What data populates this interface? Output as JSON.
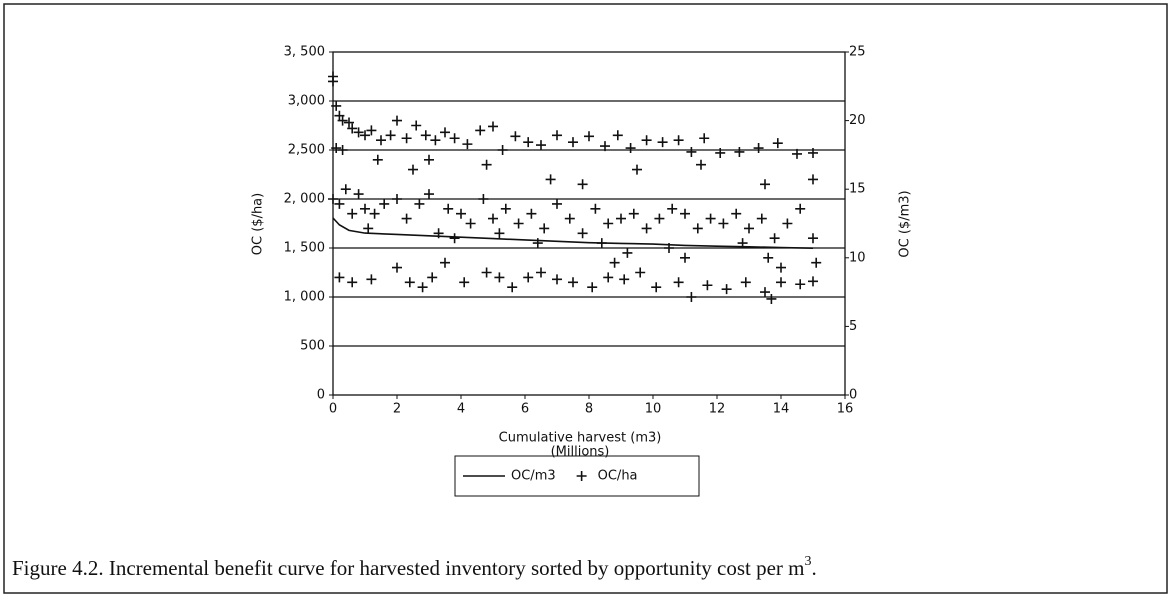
{
  "chart_data": {
    "type": "combo",
    "xlabel": "Cumulative harvest (m3)",
    "xlabel2": "(Millions)",
    "ylabel": "OC ($/ha)",
    "y2label": "OC ($/m3)",
    "caption": [
      "Figure 4.2.  Incremental benefit curve for harvested inventory sorted by opportunity cost per m",
      "3",
      "."
    ],
    "xlim": [
      0,
      16
    ],
    "xticks": [
      0,
      2,
      4,
      6,
      8,
      10,
      12,
      14,
      16
    ],
    "ylim": [
      0,
      3500
    ],
    "yticks": [
      0,
      500,
      {
        "value": 1000,
        "label": "1, 000"
      },
      {
        "value": 1500,
        "label": "1, 500"
      },
      {
        "value": 2000,
        "label": "2, 000"
      },
      {
        "value": 2500,
        "label": "2,500"
      },
      {
        "value": 3000,
        "label": "3,000"
      },
      {
        "value": 3500,
        "label": "3, 500"
      }
    ],
    "y2lim": [
      0,
      25
    ],
    "y2ticks": [
      0,
      5,
      10,
      15,
      20,
      25
    ],
    "grid": true,
    "series": [
      {
        "name": "OC/m3",
        "type": "line",
        "axis": "y2",
        "color": "#111",
        "x": [
          0,
          0.2,
          0.5,
          1,
          2,
          3,
          4,
          5,
          6,
          7,
          8,
          9,
          10,
          11,
          12,
          13,
          14,
          15
        ],
        "values": [
          12.9,
          12.4,
          12.0,
          11.8,
          11.7,
          11.6,
          11.5,
          11.4,
          11.3,
          11.2,
          11.1,
          11.05,
          11.0,
          10.9,
          10.85,
          10.8,
          10.75,
          10.7
        ]
      },
      {
        "name": "OC/ha",
        "type": "scatter",
        "color": "#111",
        "x": [
          0,
          0,
          0.1,
          0.2,
          0.3,
          0.5,
          0.6,
          0.8,
          1,
          1.2,
          1.5,
          1.8,
          2,
          2.3,
          2.6,
          2.9,
          3.2,
          3.5,
          3.8,
          4.2,
          4.6,
          5,
          5.3,
          5.7,
          6.1,
          6.5,
          7,
          7.5,
          8,
          8.5,
          8.9,
          9.3,
          9.8,
          10.3,
          10.8,
          11.2,
          11.6,
          12.1,
          12.7,
          13.3,
          13.9,
          14.5,
          15,
          0.1,
          1.4,
          2.5,
          4.8,
          6.8,
          7.8,
          9.5,
          11.5,
          13.5,
          15,
          0.3,
          3,
          0,
          0.2,
          0.4,
          0.6,
          0.8,
          1,
          1.3,
          1.6,
          2,
          2.3,
          2.7,
          3,
          3.3,
          3.6,
          4,
          4.3,
          4.7,
          5,
          5.4,
          5.8,
          6.2,
          6.6,
          7,
          7.4,
          7.8,
          8.2,
          8.6,
          9,
          9.4,
          9.8,
          10.2,
          10.6,
          11,
          11.4,
          11.8,
          12.2,
          12.6,
          13,
          13.4,
          13.8,
          14.2,
          14.6,
          15,
          1.1,
          5.2,
          8.4,
          10.5,
          12.8,
          13.6,
          3.8,
          6.4,
          9.2,
          11,
          14,
          15.1,
          0.2,
          0.6,
          1.2,
          2,
          2.4,
          2.8,
          3.1,
          4.1,
          4.8,
          5.2,
          5.6,
          6.1,
          6.5,
          7,
          7.5,
          8.1,
          8.6,
          9.1,
          9.6,
          10.1,
          10.8,
          11.2,
          11.7,
          12.3,
          12.9,
          13.5,
          14,
          14.6,
          15,
          13.7,
          3.5,
          8.8
        ],
        "values": [
          3250,
          3200,
          2950,
          2850,
          2800,
          2780,
          2720,
          2680,
          2650,
          2700,
          2600,
          2650,
          2800,
          2620,
          2750,
          2650,
          2600,
          2680,
          2620,
          2560,
          2700,
          2740,
          2500,
          2640,
          2580,
          2550,
          2650,
          2580,
          2640,
          2540,
          2650,
          2520,
          2600,
          2580,
          2600,
          2480,
          2620,
          2470,
          2480,
          2520,
          2570,
          2460,
          2470,
          2520,
          2400,
          2300,
          2350,
          2200,
          2150,
          2300,
          2350,
          2150,
          2200,
          2500,
          2400,
          2000,
          1950,
          2100,
          1850,
          2050,
          1900,
          1850,
          1950,
          2000,
          1800,
          1950,
          2050,
          1650,
          1900,
          1850,
          1750,
          2000,
          1800,
          1900,
          1750,
          1850,
          1700,
          1950,
          1800,
          1650,
          1900,
          1750,
          1800,
          1850,
          1700,
          1800,
          1900,
          1850,
          1700,
          1800,
          1750,
          1850,
          1700,
          1800,
          1600,
          1750,
          1900,
          1600,
          1700,
          1650,
          1550,
          1500,
          1550,
          1400,
          1600,
          1550,
          1450,
          1400,
          1300,
          1350,
          1200,
          1150,
          1180,
          1300,
          1150,
          1100,
          1200,
          1150,
          1250,
          1200,
          1100,
          1200,
          1250,
          1180,
          1150,
          1100,
          1200,
          1180,
          1250,
          1100,
          1150,
          1000,
          1120,
          1080,
          1150,
          1050,
          1150,
          1130,
          1160,
          980,
          1350,
          1350
        ]
      }
    ]
  }
}
